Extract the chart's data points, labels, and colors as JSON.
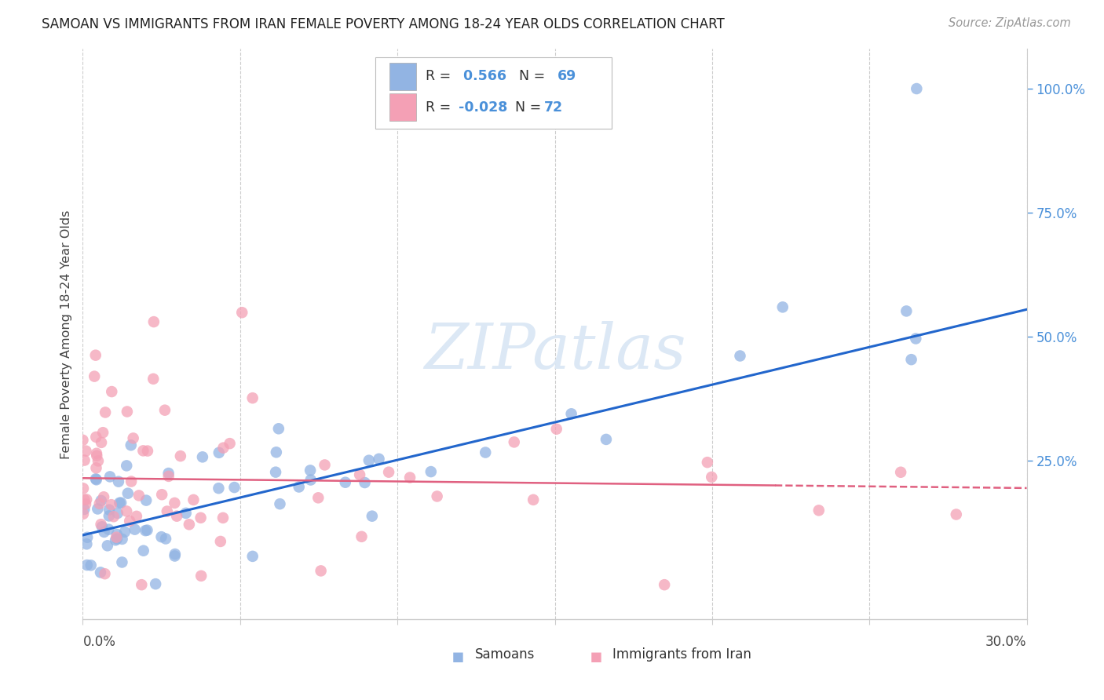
{
  "title": "SAMOAN VS IMMIGRANTS FROM IRAN FEMALE POVERTY AMONG 18-24 YEAR OLDS CORRELATION CHART",
  "source": "Source: ZipAtlas.com",
  "ylabel": "Female Poverty Among 18-24 Year Olds",
  "right_yticks": [
    "100.0%",
    "75.0%",
    "50.0%",
    "25.0%"
  ],
  "right_ytick_vals": [
    1.0,
    0.75,
    0.5,
    0.25
  ],
  "samoans_r": "0.566",
  "samoans_n": "69",
  "iran_r": "-0.028",
  "iran_n": "72",
  "color_samoans": "#92b4e3",
  "color_iran": "#f4a0b5",
  "color_line_samoans": "#2266cc",
  "color_line_iran": "#e06080",
  "watermark_color": "#dce8f5",
  "grid_color": "#cccccc",
  "title_color": "#222222",
  "source_color": "#999999",
  "axis_label_color": "#444444",
  "right_tick_color": "#4a90d9",
  "legend_text_color": "#333333",
  "legend_value_color": "#4a90d9",
  "xmin": 0.0,
  "xmax": 0.3,
  "ymin": -0.07,
  "ymax": 1.08,
  "sam_line_x0": 0.0,
  "sam_line_y0": 0.1,
  "sam_line_x1": 0.3,
  "sam_line_y1": 0.555,
  "iran_line_x0": 0.0,
  "iran_line_y0": 0.215,
  "iran_line_x1": 0.3,
  "iran_line_y1": 0.195
}
